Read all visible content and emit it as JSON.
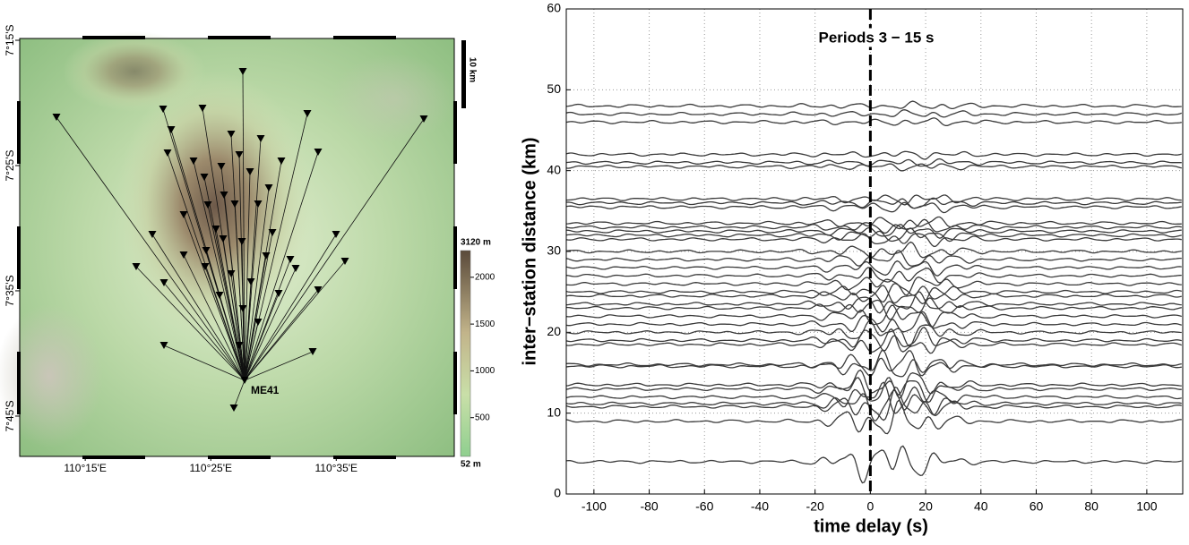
{
  "map": {
    "station_label": "ME41",
    "scale_label": "10 km",
    "lon_ticks": [
      {
        "value": 110.25,
        "label": "110°15'E"
      },
      {
        "value": 110.4167,
        "label": "110°25'E"
      },
      {
        "value": 110.5833,
        "label": "110°35'E"
      }
    ],
    "lat_ticks": [
      {
        "value": -7.25,
        "label": "7°15'S"
      },
      {
        "value": -7.4167,
        "label": "7°25'S"
      },
      {
        "value": -7.5833,
        "label": "7°35'S"
      },
      {
        "value": -7.75,
        "label": "7°45'S"
      }
    ],
    "lonlim": [
      110.163,
      110.74
    ],
    "latlim": [
      -7.2476,
      -7.8036
    ],
    "colorbar": {
      "lim": [
        0,
        2400
      ],
      "ticks": [
        500,
        1000,
        1500,
        2000
      ],
      "max_label": "3120 m",
      "min_label": "52 m"
    }
  },
  "chart_data": {
    "type": "waveform",
    "title": "Periods 3 − 15 s",
    "x_label": "time delay (s)",
    "y_label": "inter−station distance (km)",
    "xlim": [
      -110,
      113
    ],
    "ylim": [
      0,
      60
    ],
    "xticks": [
      -100,
      -80,
      -60,
      -40,
      -20,
      0,
      20,
      40,
      60,
      80,
      100
    ],
    "yticks": [
      0,
      10,
      20,
      30,
      40,
      50,
      60
    ],
    "grid": true,
    "reference_line": 0,
    "color": "#3a3a3a",
    "distances": [
      4,
      9,
      10.8,
      11.2,
      12,
      13,
      13.5,
      15.8,
      16,
      18.5,
      19,
      20,
      21,
      22,
      23,
      23.5,
      24.5,
      25,
      26,
      27,
      28,
      29,
      30,
      31.5,
      32,
      32.5,
      33,
      33.5,
      35.5,
      36,
      36.5,
      40.5,
      41,
      42,
      46,
      47,
      48
    ]
  }
}
